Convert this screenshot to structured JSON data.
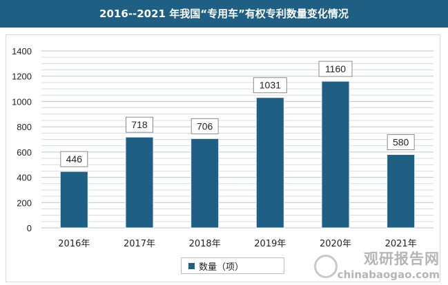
{
  "chart_data": {
    "type": "bar",
    "title": "2016--2021 年我国“专用车”有权专利数量变化情况",
    "categories": [
      "2016年",
      "2017年",
      "2018年",
      "2019年",
      "2020年",
      "2021年"
    ],
    "series": [
      {
        "name": "数量（项）",
        "values": [
          446,
          718,
          706,
          1031,
          1160,
          580
        ]
      }
    ],
    "ylim": [
      0,
      1400
    ],
    "yticks": [
      0,
      200,
      400,
      600,
      800,
      1000,
      1200,
      1400
    ],
    "grid": true,
    "legend_position": "bottom-center",
    "bar_color": "#1f5f84"
  },
  "watermark": {
    "cn": "观研报告网",
    "en": "chinabaogao.com"
  }
}
